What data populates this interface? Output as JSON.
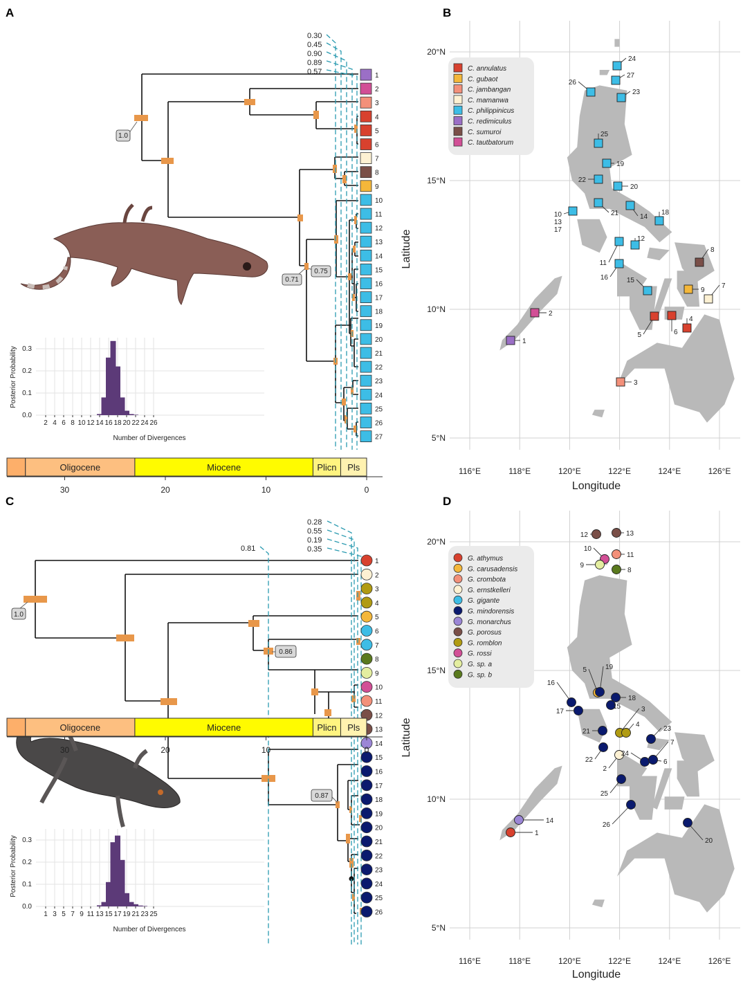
{
  "panels": {
    "A": {
      "letter": "A",
      "tip_labels": [
        "1",
        "2",
        "3",
        "4",
        "5",
        "6",
        "7",
        "8",
        "9",
        "10",
        "11",
        "12",
        "13",
        "14",
        "15",
        "16",
        "17",
        "18",
        "19",
        "20",
        "21",
        "22",
        "23",
        "24",
        "25",
        "26",
        "27"
      ],
      "tip_colors": [
        "#9b6fc6",
        "#d24f96",
        "#f3907a",
        "#d8412e",
        "#d8412e",
        "#d8412e",
        "#fdf1d3",
        "#7a4f48",
        "#f4b73a",
        "#3dbde6",
        "#3dbde6",
        "#3dbde6",
        "#3dbde6",
        "#3dbde6",
        "#3dbde6",
        "#3dbde6",
        "#3dbde6",
        "#3dbde6",
        "#3dbde6",
        "#3dbde6",
        "#3dbde6",
        "#3dbde6",
        "#3dbde6",
        "#3dbde6",
        "#3dbde6",
        "#3dbde6",
        "#3dbde6"
      ],
      "posterior_labels": [
        "0.30",
        "0.45",
        "0.90",
        "0.89",
        "0.57"
      ],
      "node_supports": [
        "1.0",
        "0.71",
        "0.75"
      ],
      "histogram": {
        "ylabel": "Posterior Probability",
        "xlabel": "Number of Divergences",
        "x_ticks": [
          "2",
          "4",
          "6",
          "8",
          "10",
          "12",
          "14",
          "16",
          "18",
          "20",
          "22",
          "24",
          "26"
        ],
        "y_ticks": [
          "0.0",
          "0.1",
          "0.2",
          "0.3"
        ]
      }
    },
    "B": {
      "letter": "B",
      "legend": [
        "C. annulatus",
        "C. gubaot",
        "C. jambangan",
        "C. mamanwa",
        "C. philippinicus",
        "C. redimiculus",
        "C. sumuroi",
        "C. tautbatorum"
      ],
      "legend_colors": [
        "#d8412e",
        "#f4b73a",
        "#f3907a",
        "#fdf1d3",
        "#3dbde6",
        "#9b6fc6",
        "#7a4f48",
        "#d24f96"
      ],
      "x_ticks": [
        "116°E",
        "118°E",
        "120°E",
        "122°E",
        "124°E",
        "126°E"
      ],
      "y_ticks": [
        "20°N",
        "15°N",
        "10°N",
        "5°N"
      ],
      "xlabel": "Longitude",
      "ylabel": "Latitude"
    },
    "C": {
      "letter": "C",
      "tip_labels": [
        "1",
        "2",
        "3",
        "4",
        "5",
        "6",
        "7",
        "8",
        "9",
        "10",
        "11",
        "12",
        "13",
        "14",
        "15",
        "16",
        "17",
        "18",
        "19",
        "20",
        "21",
        "22",
        "23",
        "24",
        "25",
        "26"
      ],
      "tip_colors": [
        "#d8412e",
        "#fdf1d3",
        "#b09b12",
        "#b09b12",
        "#f4b73a",
        "#3dbde6",
        "#3dbde6",
        "#5a7a1e",
        "#e4eea0",
        "#d24f96",
        "#f3907a",
        "#7a4f48",
        "#7a4f48",
        "#9b86d6",
        "#0a1a6e",
        "#0a1a6e",
        "#0a1a6e",
        "#0a1a6e",
        "#0a1a6e",
        "#0a1a6e",
        "#0a1a6e",
        "#0a1a6e",
        "#0a1a6e",
        "#0a1a6e",
        "#0a1a6e",
        "#0a1a6e"
      ],
      "posterior_labels": [
        "0.28",
        "0.55",
        "0.19",
        "0.35"
      ],
      "posterior_label_left": "0.81",
      "node_supports": [
        "1.0",
        "0.86",
        "0.87"
      ],
      "histogram": {
        "ylabel": "Posterior Probability",
        "xlabel": "Number of Divergences",
        "x_ticks": [
          "1",
          "3",
          "5",
          "7",
          "9",
          "11",
          "13",
          "15",
          "17",
          "19",
          "21",
          "23",
          "25"
        ],
        "y_ticks": [
          "0.0",
          "0.1",
          "0.2",
          "0.3"
        ]
      }
    },
    "D": {
      "letter": "D",
      "legend": [
        "G. athymus",
        "G. carusadensis",
        "G. crombota",
        "G. ernstkelleri",
        "G. gigante",
        "G. mindorensis",
        "G. monarchus",
        "G. porosus",
        "G. romblon",
        "G. rossi",
        "G. sp. a",
        "G. sp. b"
      ],
      "legend_colors": [
        "#d8412e",
        "#f4b73a",
        "#f3907a",
        "#fdf1d3",
        "#3dbde6",
        "#0a1a6e",
        "#9b86d6",
        "#7a4f48",
        "#b09b12",
        "#d24f96",
        "#e4eea0",
        "#5a7a1e"
      ],
      "x_ticks": [
        "116°E",
        "118°E",
        "120°E",
        "122°E",
        "124°E",
        "126°E"
      ],
      "y_ticks": [
        "20°N",
        "15°N",
        "10°N",
        "5°N"
      ],
      "xlabel": "Longitude",
      "ylabel": "Latitude"
    }
  },
  "timescale": {
    "epochs": [
      "Oligocene",
      "Miocene",
      "Plicn",
      "Pls"
    ],
    "epoch_colors": [
      "#fdaf6a",
      "#fdbf80",
      "#fffb00",
      "#fff480",
      "#fff2b0"
    ],
    "ticks": [
      "30",
      "20",
      "10",
      "0"
    ]
  }
}
